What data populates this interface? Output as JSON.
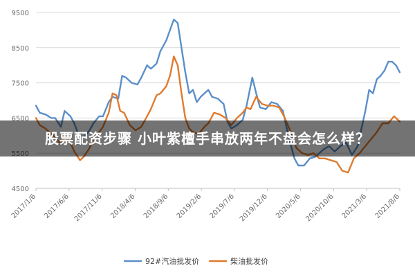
{
  "headline": "股票配资步骤 小叶紫檀手串放两年不盘会怎么样？",
  "colors": {
    "series1": "#5b8fc9",
    "series2": "#e07b2e",
    "grid": "#d9d9d9",
    "axis": "#bfbfbf"
  },
  "chart_data": {
    "type": "line",
    "title": "",
    "xlabel": "",
    "ylabel": "",
    "ylim": [
      4500,
      9500
    ],
    "yticks": [
      4500,
      5500,
      6500,
      7500,
      8500,
      9500
    ],
    "grid": true,
    "legend_position": "bottom",
    "xtick_labels": [
      "2017/1/6",
      "2017/6/6",
      "2017/11/6",
      "2018/4/6",
      "2018/9/6",
      "2019/2/6",
      "2019/7/6",
      "2019/12/6",
      "2020/5/6",
      "2020/10/6",
      "2021/3/6",
      "2021/8/6"
    ],
    "series": [
      {
        "name": "92#汽油批发价",
        "color": "#5b8fc9",
        "points": [
          [
            0,
            6850
          ],
          [
            0.2,
            6650
          ],
          [
            0.5,
            6600
          ],
          [
            0.8,
            6500
          ],
          [
            1.0,
            6500
          ],
          [
            1.3,
            6250
          ],
          [
            1.5,
            6700
          ],
          [
            1.8,
            6550
          ],
          [
            2.0,
            6350
          ],
          [
            2.3,
            5900
          ],
          [
            2.5,
            5950
          ],
          [
            2.8,
            6150
          ],
          [
            3.0,
            6350
          ],
          [
            3.3,
            6550
          ],
          [
            3.5,
            6550
          ],
          [
            3.8,
            6950
          ],
          [
            4.0,
            7100
          ],
          [
            4.3,
            7050
          ],
          [
            4.5,
            7700
          ],
          [
            4.7,
            7650
          ],
          [
            5.0,
            7500
          ],
          [
            5.3,
            7450
          ],
          [
            5.5,
            7650
          ],
          [
            5.8,
            8000
          ],
          [
            6.0,
            7900
          ],
          [
            6.3,
            8050
          ],
          [
            6.5,
            8400
          ],
          [
            6.8,
            8700
          ],
          [
            7.0,
            9000
          ],
          [
            7.2,
            9300
          ],
          [
            7.4,
            9200
          ],
          [
            7.6,
            8500
          ],
          [
            7.8,
            7800
          ],
          [
            8.0,
            7200
          ],
          [
            8.2,
            7300
          ],
          [
            8.4,
            6950
          ],
          [
            8.6,
            7100
          ],
          [
            8.8,
            7200
          ],
          [
            9.0,
            7300
          ],
          [
            9.2,
            7100
          ],
          [
            9.5,
            7050
          ],
          [
            9.8,
            6900
          ],
          [
            10.0,
            6400
          ],
          [
            10.2,
            6200
          ],
          [
            10.5,
            6300
          ],
          [
            10.8,
            6450
          ],
          [
            11.0,
            6850
          ],
          [
            11.3,
            7650
          ],
          [
            11.5,
            7200
          ],
          [
            11.7,
            6800
          ],
          [
            12.0,
            6750
          ],
          [
            12.3,
            6950
          ],
          [
            12.6,
            6900
          ],
          [
            12.9,
            6700
          ],
          [
            13.1,
            6200
          ],
          [
            13.3,
            5750
          ],
          [
            13.5,
            5350
          ],
          [
            13.7,
            5150
          ],
          [
            14.0,
            5150
          ],
          [
            14.3,
            5350
          ],
          [
            14.6,
            5400
          ],
          [
            15.0,
            5600
          ],
          [
            15.3,
            5700
          ],
          [
            15.6,
            5550
          ],
          [
            15.9,
            5700
          ],
          [
            16.2,
            5800
          ],
          [
            16.5,
            5450
          ],
          [
            16.8,
            5700
          ],
          [
            17.0,
            6200
          ],
          [
            17.2,
            6700
          ],
          [
            17.4,
            7300
          ],
          [
            17.6,
            7200
          ],
          [
            17.8,
            7600
          ],
          [
            18.0,
            7700
          ],
          [
            18.2,
            7850
          ],
          [
            18.4,
            8100
          ],
          [
            18.6,
            8100
          ],
          [
            18.8,
            8000
          ],
          [
            19.0,
            7800
          ]
        ]
      },
      {
        "name": "柴油批发价",
        "color": "#e07b2e",
        "points": [
          [
            0,
            6500
          ],
          [
            0.2,
            6300
          ],
          [
            0.5,
            6200
          ],
          [
            0.8,
            6050
          ],
          [
            1.0,
            5950
          ],
          [
            1.3,
            5750
          ],
          [
            1.5,
            6000
          ],
          [
            1.8,
            5800
          ],
          [
            2.0,
            5550
          ],
          [
            2.3,
            5300
          ],
          [
            2.5,
            5400
          ],
          [
            2.8,
            5650
          ],
          [
            3.0,
            5900
          ],
          [
            3.3,
            6100
          ],
          [
            3.5,
            6250
          ],
          [
            3.8,
            6650
          ],
          [
            4.0,
            7200
          ],
          [
            4.2,
            7150
          ],
          [
            4.4,
            6700
          ],
          [
            4.6,
            6650
          ],
          [
            4.9,
            6300
          ],
          [
            5.2,
            6150
          ],
          [
            5.5,
            6250
          ],
          [
            5.8,
            6550
          ],
          [
            6.0,
            6750
          ],
          [
            6.3,
            7150
          ],
          [
            6.5,
            7200
          ],
          [
            6.8,
            7400
          ],
          [
            7.0,
            7700
          ],
          [
            7.2,
            8250
          ],
          [
            7.4,
            8000
          ],
          [
            7.6,
            7200
          ],
          [
            7.8,
            6500
          ],
          [
            8.0,
            6200
          ],
          [
            8.2,
            6100
          ],
          [
            8.5,
            6050
          ],
          [
            8.8,
            6250
          ],
          [
            9.0,
            6350
          ],
          [
            9.3,
            6650
          ],
          [
            9.6,
            6600
          ],
          [
            9.9,
            6500
          ],
          [
            10.2,
            6300
          ],
          [
            10.5,
            6500
          ],
          [
            10.8,
            6650
          ],
          [
            11.0,
            6800
          ],
          [
            11.2,
            6750
          ],
          [
            11.5,
            7100
          ],
          [
            11.8,
            6900
          ],
          [
            12.1,
            6850
          ],
          [
            12.4,
            6850
          ],
          [
            12.7,
            6800
          ],
          [
            13.0,
            6500
          ],
          [
            13.3,
            6100
          ],
          [
            13.6,
            5650
          ],
          [
            13.9,
            5500
          ],
          [
            14.2,
            5450
          ],
          [
            14.5,
            5500
          ],
          [
            14.8,
            5350
          ],
          [
            15.1,
            5350
          ],
          [
            15.4,
            5300
          ],
          [
            15.7,
            5250
          ],
          [
            16.0,
            5000
          ],
          [
            16.3,
            4950
          ],
          [
            16.6,
            5350
          ],
          [
            16.9,
            5500
          ],
          [
            17.2,
            5700
          ],
          [
            17.5,
            5900
          ],
          [
            17.8,
            6100
          ],
          [
            18.1,
            6350
          ],
          [
            18.4,
            6350
          ],
          [
            18.7,
            6550
          ],
          [
            19.0,
            6400
          ]
        ]
      }
    ]
  }
}
